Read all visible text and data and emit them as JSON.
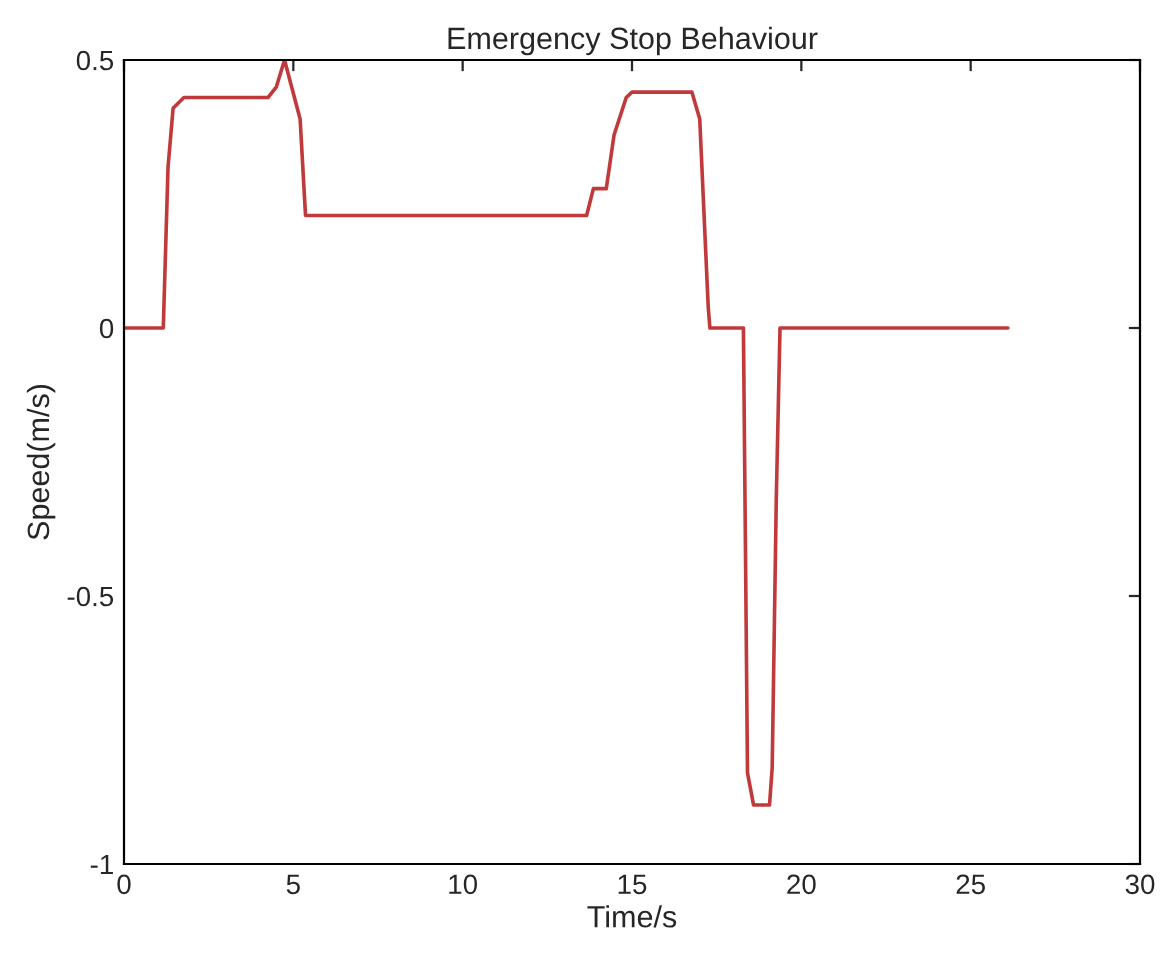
{
  "chart_data": {
    "type": "line",
    "title": "Emergency Stop Behaviour",
    "xlabel": "Time/s",
    "ylabel": "Speed(m/s)",
    "series": [
      {
        "color": "#c0393b",
        "x": [
          0,
          1.16,
          1.3,
          1.45,
          1.77,
          4.25,
          4.5,
          4.74,
          5.2,
          5.36,
          13.66,
          13.86,
          14.24,
          14.47,
          14.83,
          15.0,
          16.77,
          17.0,
          17.25,
          17.3,
          18.29,
          18.35,
          18.41,
          18.59,
          19.06,
          19.14,
          19.26,
          19.37,
          26.1
        ],
        "values": [
          0,
          0,
          0.3,
          0.41,
          0.43,
          0.43,
          0.45,
          0.5,
          0.39,
          0.21,
          0.21,
          0.26,
          0.26,
          0.36,
          0.43,
          0.44,
          0.44,
          0.39,
          0.04,
          0,
          0,
          -0.41,
          -0.83,
          -0.89,
          -0.89,
          -0.82,
          -0.32,
          0,
          0
        ]
      }
    ],
    "xlim": [
      0,
      30
    ],
    "ylim": [
      -1,
      0.5
    ],
    "xticks": [
      0,
      5,
      10,
      15,
      20,
      25,
      30
    ],
    "yticks": [
      -1,
      -0.5,
      0,
      0.5
    ],
    "grid": false,
    "legend": false
  }
}
